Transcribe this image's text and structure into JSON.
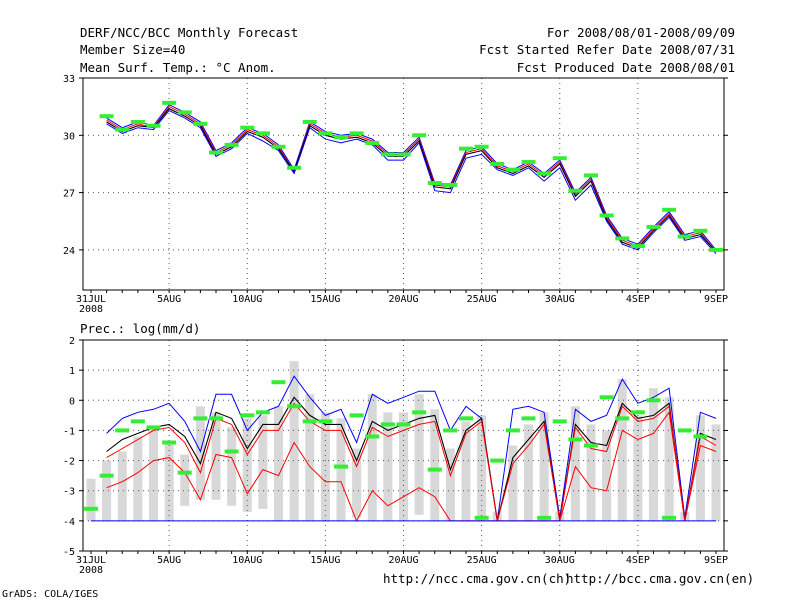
{
  "header": {
    "title": "DERF/NCC/BCC Monthly Forecast",
    "member_size": "Member Size=40",
    "variable": "Mean Surf. Temp.: °C Anom.",
    "period": "For 2008/08/01-2008/09/09",
    "started": "Fcst Started Refer Date 2008/07/31",
    "produced": "Fcst Produced Date 2008/08/01"
  },
  "footer": {
    "grads": "GrADS: COLA/IGES",
    "url_ncc": "http://ncc.cma.gov.cn(ch)",
    "url_bcc": "http://bcc.cma.gov.cn(en)"
  },
  "colors": {
    "blue": "#0000ff",
    "red": "#ff0000",
    "black": "#000000",
    "green": "#33ee33",
    "gray": "#d8d8d8",
    "grid": "#000000"
  },
  "chart_data": [
    {
      "type": "line",
      "title": "Mean Surf. Temp.: °C Anom.",
      "x": [
        0,
        1,
        2,
        3,
        4,
        5,
        6,
        7,
        8,
        9,
        10,
        11,
        12,
        13,
        14,
        15,
        16,
        17,
        18,
        19,
        20,
        21,
        22,
        23,
        24,
        25,
        26,
        27,
        28,
        29,
        30,
        31,
        32,
        33,
        34,
        35,
        36,
        37,
        38,
        39,
        40
      ],
      "x_ticks": [
        {
          "x": 0,
          "label": "31JUL",
          "sub": "2008"
        },
        {
          "x": 5,
          "label": "5AUG"
        },
        {
          "x": 10,
          "label": "10AUG"
        },
        {
          "x": 15,
          "label": "15AUG"
        },
        {
          "x": 20,
          "label": "20AUG"
        },
        {
          "x": 25,
          "label": "25AUG"
        },
        {
          "x": 30,
          "label": "30AUG"
        },
        {
          "x": 35,
          "label": "4SEP"
        },
        {
          "x": 40,
          "label": "9SEP"
        }
      ],
      "ylim": [
        21.9,
        33
      ],
      "yticks": [
        24,
        27,
        30,
        33
      ],
      "series": [
        {
          "name": "upper",
          "color": "blue",
          "values": [
            null,
            30.9,
            30.4,
            30.7,
            30.5,
            31.6,
            31.2,
            30.7,
            29.2,
            29.6,
            30.4,
            30.1,
            29.5,
            28.2,
            30.7,
            30.2,
            30.0,
            30.1,
            29.8,
            29.1,
            29.1,
            29.9,
            27.5,
            27.4,
            29.2,
            29.4,
            28.5,
            28.2,
            28.6,
            28.0,
            28.7,
            27.0,
            27.8,
            25.8,
            24.6,
            24.3,
            25.2,
            26.0,
            24.8,
            25.0,
            24.0
          ]
        },
        {
          "name": "red_upper",
          "color": "red",
          "values": [
            null,
            30.8,
            30.3,
            30.6,
            30.4,
            31.5,
            31.1,
            30.6,
            29.1,
            29.5,
            30.3,
            30.0,
            29.4,
            28.1,
            30.6,
            30.1,
            29.9,
            30.0,
            29.7,
            29.0,
            29.0,
            29.8,
            27.4,
            27.3,
            29.1,
            29.3,
            28.4,
            28.1,
            28.5,
            27.9,
            28.6,
            26.9,
            27.7,
            25.7,
            24.5,
            24.2,
            25.1,
            25.9,
            24.7,
            24.9,
            23.9
          ]
        },
        {
          "name": "mean",
          "color": "black",
          "values": [
            null,
            30.7,
            30.2,
            30.5,
            30.4,
            31.4,
            31.0,
            30.5,
            29.0,
            29.4,
            30.2,
            29.9,
            29.3,
            28.1,
            30.5,
            30.0,
            29.8,
            29.9,
            29.6,
            28.9,
            28.9,
            29.7,
            27.3,
            27.2,
            29.0,
            29.2,
            28.3,
            28.0,
            28.4,
            27.8,
            28.5,
            26.8,
            27.6,
            25.6,
            24.4,
            24.1,
            25.0,
            25.8,
            24.6,
            24.8,
            23.9
          ]
        },
        {
          "name": "lower",
          "color": "blue",
          "values": [
            null,
            30.6,
            30.1,
            30.4,
            30.3,
            31.3,
            30.9,
            30.4,
            28.9,
            29.3,
            30.1,
            29.7,
            29.2,
            28.0,
            30.4,
            29.8,
            29.6,
            29.8,
            29.5,
            28.7,
            28.7,
            29.6,
            27.1,
            27.0,
            28.8,
            29.0,
            28.2,
            27.9,
            28.3,
            27.6,
            28.3,
            26.6,
            27.4,
            25.5,
            24.3,
            24.0,
            24.9,
            25.7,
            24.5,
            24.7,
            23.8
          ]
        }
      ],
      "markers": {
        "color": "green",
        "values": [
          null,
          31.0,
          30.3,
          30.7,
          30.5,
          31.7,
          31.2,
          30.6,
          29.1,
          29.5,
          30.4,
          30.1,
          29.4,
          28.3,
          30.7,
          30.1,
          29.9,
          30.1,
          29.6,
          29.0,
          29.0,
          30.0,
          27.5,
          27.4,
          29.3,
          29.4,
          28.5,
          28.2,
          28.6,
          28.0,
          28.8,
          27.1,
          27.9,
          25.8,
          24.6,
          24.2,
          25.2,
          26.1,
          24.7,
          25.0,
          24.0
        ]
      }
    },
    {
      "type": "line",
      "title": "Prec.: log(mm/d)",
      "x_ticks": [
        {
          "x": 0,
          "label": "31JUL",
          "sub": "2008"
        },
        {
          "x": 5,
          "label": "5AUG"
        },
        {
          "x": 10,
          "label": "10AUG"
        },
        {
          "x": 15,
          "label": "15AUG"
        },
        {
          "x": 20,
          "label": "20AUG"
        },
        {
          "x": 25,
          "label": "25AUG"
        },
        {
          "x": 30,
          "label": "30AUG"
        },
        {
          "x": 35,
          "label": "4SEP"
        },
        {
          "x": 40,
          "label": "9SEP"
        }
      ],
      "ylim": [
        -5,
        2
      ],
      "yticks": [
        -5,
        -4,
        -3,
        -2,
        -1,
        0,
        1,
        2
      ],
      "bars": {
        "color": "gray",
        "values": [
          [
            -4,
            -2.6
          ],
          [
            -4,
            -2
          ],
          [
            -4,
            -1.7
          ],
          [
            -4,
            -1.2
          ],
          [
            -4,
            -0.9
          ],
          [
            -4,
            -1.4
          ],
          [
            -3.5,
            -1.8
          ],
          [
            -3.3,
            -0.2
          ],
          [
            -3.3,
            -0.4
          ],
          [
            -3.5,
            -0.9
          ],
          [
            -3.7,
            -0.6
          ],
          [
            -3.6,
            -0.5
          ],
          [
            -4,
            -0.2
          ],
          [
            -4,
            1.3
          ],
          [
            -4,
            0.2
          ],
          [
            -4,
            -0.4
          ],
          [
            -4,
            -0.6
          ],
          [
            -3.9,
            -1.6
          ],
          [
            -4,
            0.2
          ],
          [
            -4,
            -0.4
          ],
          [
            -4,
            -0.4
          ],
          [
            -3.8,
            0.2
          ],
          [
            -4,
            -0.3
          ],
          [
            -4,
            -1.6
          ],
          [
            -4,
            -0.7
          ],
          [
            -4,
            -0.5
          ],
          [
            -4,
            -3.7
          ],
          [
            -4,
            -1.5
          ],
          [
            -4,
            -0.8
          ],
          [
            -4,
            -0.4
          ],
          [
            -4,
            -3.7
          ],
          [
            -4,
            -0.2
          ],
          [
            -4,
            -0.8
          ],
          [
            -4,
            -1
          ],
          [
            -4,
            0.7
          ],
          [
            -4,
            -0.5
          ],
          [
            -4,
            0.4
          ],
          [
            -4,
            0.1
          ],
          [
            -4,
            -3.7
          ],
          [
            -4,
            -0.5
          ],
          [
            -4,
            -0.8
          ]
        ]
      },
      "series": [
        {
          "name": "upper",
          "color": "blue",
          "values": [
            null,
            -1.1,
            -0.6,
            -0.4,
            -0.3,
            -0.1,
            -0.7,
            -1.7,
            0.2,
            0.2,
            -1.0,
            -0.4,
            -0.2,
            0.8,
            0.1,
            -0.5,
            -0.3,
            -1.4,
            0.2,
            -0.1,
            0.1,
            0.3,
            0.3,
            -1.0,
            -0.2,
            -0.6,
            -4.0,
            -0.3,
            -0.2,
            -0.4,
            -3.9,
            -0.3,
            -0.7,
            -0.5,
            0.7,
            -0.1,
            0.1,
            0.4,
            -3.9,
            -0.4,
            -0.6
          ]
        },
        {
          "name": "mean",
          "color": "black",
          "values": [
            null,
            -1.7,
            -1.3,
            -1.1,
            -0.9,
            -0.8,
            -1.2,
            -2.1,
            -0.4,
            -0.6,
            -1.6,
            -0.8,
            -0.8,
            0.1,
            -0.5,
            -0.8,
            -0.8,
            -2.0,
            -0.7,
            -1.0,
            -0.8,
            -0.6,
            -0.5,
            -2.3,
            -1.0,
            -0.6,
            -4.0,
            -1.9,
            -1.3,
            -0.7,
            -4.0,
            -0.8,
            -1.4,
            -1.5,
            -0.1,
            -0.6,
            -0.5,
            -0.1,
            -4.0,
            -1.1,
            -1.3
          ]
        },
        {
          "name": "red",
          "color": "red",
          "values": [
            null,
            -1.9,
            -1.6,
            -1.3,
            -1.0,
            -0.9,
            -1.4,
            -2.4,
            -0.6,
            -0.8,
            -1.8,
            -1.0,
            -1.0,
            -0.1,
            -0.7,
            -1.0,
            -1.0,
            -2.2,
            -0.9,
            -1.2,
            -1.0,
            -0.8,
            -0.7,
            -2.5,
            -1.1,
            -0.7,
            -4.0,
            -2.1,
            -1.5,
            -0.8,
            -4.0,
            -0.9,
            -1.6,
            -1.7,
            -0.2,
            -0.7,
            -0.6,
            -0.2,
            -4.0,
            -1.2,
            -1.5
          ]
        },
        {
          "name": "lower",
          "color": "red",
          "values": [
            null,
            -2.9,
            -2.7,
            -2.4,
            -2.0,
            -1.9,
            -2.4,
            -3.3,
            -1.8,
            -1.9,
            -3.1,
            -2.3,
            -2.5,
            -1.4,
            -2.2,
            -2.7,
            -2.7,
            -4.0,
            -3.0,
            -3.5,
            -3.2,
            -2.9,
            -3.2,
            -4.0,
            -4.0,
            -4.0,
            -4.0,
            -4.0,
            -4.0,
            -4.0,
            -4.0,
            -2.2,
            -2.9,
            -3.0,
            -1.0,
            -1.3,
            -1.1,
            -0.4,
            -4.0,
            -1.5,
            -1.7
          ]
        },
        {
          "name": "floor",
          "color": "blue",
          "values": [
            -4,
            -4,
            -4,
            -4,
            -4,
            -4,
            -4,
            -4,
            -4,
            -4,
            -4,
            -4,
            -4,
            -4,
            -4,
            -4,
            -4,
            -4,
            -4,
            -4,
            -4,
            -4,
            -4,
            -4,
            -4,
            -4,
            -4,
            -4,
            -4,
            -4,
            -4,
            -4,
            -4,
            -4,
            -4,
            -4,
            -4,
            -4,
            -4,
            -4,
            -4
          ]
        }
      ],
      "markers": {
        "color": "green",
        "values": [
          -3.6,
          -2.5,
          -1.0,
          -0.7,
          -0.9,
          -1.4,
          -2.4,
          -0.6,
          -0.6,
          -1.7,
          -0.5,
          -0.4,
          0.6,
          -0.2,
          -0.7,
          -0.7,
          -2.2,
          -0.5,
          -1.2,
          -0.8,
          -0.8,
          -0.4,
          -2.3,
          -1.0,
          -0.6,
          -3.9,
          -2.0,
          -1.0,
          -0.6,
          -3.9,
          -0.7,
          -1.3,
          -1.5,
          0.1,
          -0.6,
          -0.4,
          0.0,
          -3.9,
          -1.0,
          -1.2,
          null
        ]
      }
    }
  ]
}
